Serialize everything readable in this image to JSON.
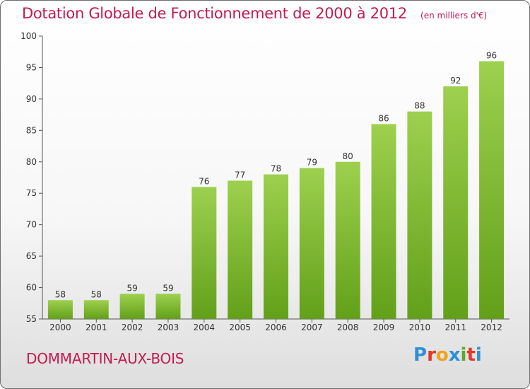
{
  "header": {
    "title": "Dotation Globale de Fonctionnement de 2000 à 2012",
    "subtitle": "(en milliers d'€)"
  },
  "footer": {
    "commune": "DOMMARTIN-AUX-BOIS",
    "brand_letters": [
      "P",
      "r",
      "o",
      "x",
      "i",
      "t",
      "i"
    ],
    "brand_colors": [
      "#2e8fd6",
      "#e8352a",
      "#f0a21c",
      "#2e8fd6",
      "#5aa832",
      "#e8352a",
      "#2e8fd6"
    ]
  },
  "chart_data": {
    "type": "bar",
    "title": "Dotation Globale de Fonctionnement de 2000 à 2012",
    "subtitle": "(en milliers d'€)",
    "xlabel": "",
    "ylabel": "",
    "categories": [
      "2000",
      "2001",
      "2002",
      "2003",
      "2004",
      "2005",
      "2006",
      "2007",
      "2008",
      "2009",
      "2010",
      "2011",
      "2012"
    ],
    "values": [
      58,
      58,
      59,
      59,
      76,
      77,
      78,
      79,
      80,
      86,
      88,
      92,
      96
    ],
    "ylim": [
      55,
      100
    ],
    "yticks": [
      55,
      60,
      65,
      70,
      75,
      80,
      85,
      90,
      95,
      100
    ],
    "grid": false,
    "bar_color_top": "#9dd04e",
    "bar_color_bottom": "#62a01a"
  }
}
